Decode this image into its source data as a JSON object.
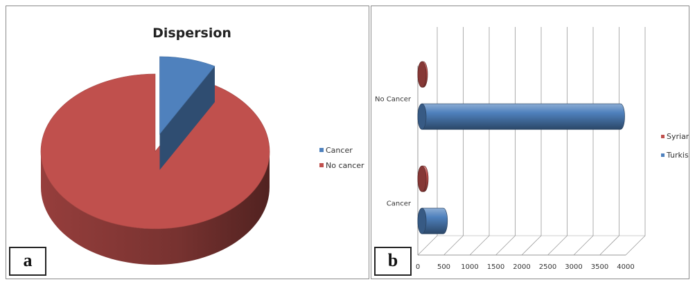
{
  "panels": {
    "a_label": "a",
    "b_label": "b"
  },
  "colors": {
    "series1": "#4f81bd",
    "series2": "#c0504d"
  },
  "chart_data": [
    {
      "type": "pie",
      "title": "Dispersion",
      "three_d": true,
      "exploded_slice": "Cancer",
      "legend_position": "right",
      "categories": [
        "Cancer",
        "No cancer"
      ],
      "values": [
        8,
        92
      ],
      "colors": [
        "#4f81bd",
        "#c0504d"
      ]
    },
    {
      "type": "bar",
      "orientation": "horizontal",
      "three_d": true,
      "categories": [
        "Cancer",
        "No Cancer"
      ],
      "series": [
        {
          "name": "Turkish",
          "values": [
            490,
            3900
          ],
          "color": "#4f81bd"
        },
        {
          "name": "Syrian",
          "values": [
            120,
            60
          ],
          "color": "#c0504d"
        }
      ],
      "xlim": [
        0,
        4000
      ],
      "xticks": [
        0,
        500,
        1000,
        1500,
        2000,
        2500,
        3000,
        3500,
        4000
      ],
      "grid": true,
      "legend_position": "right",
      "legend_order": [
        "Syrian",
        "Turkish"
      ]
    }
  ]
}
